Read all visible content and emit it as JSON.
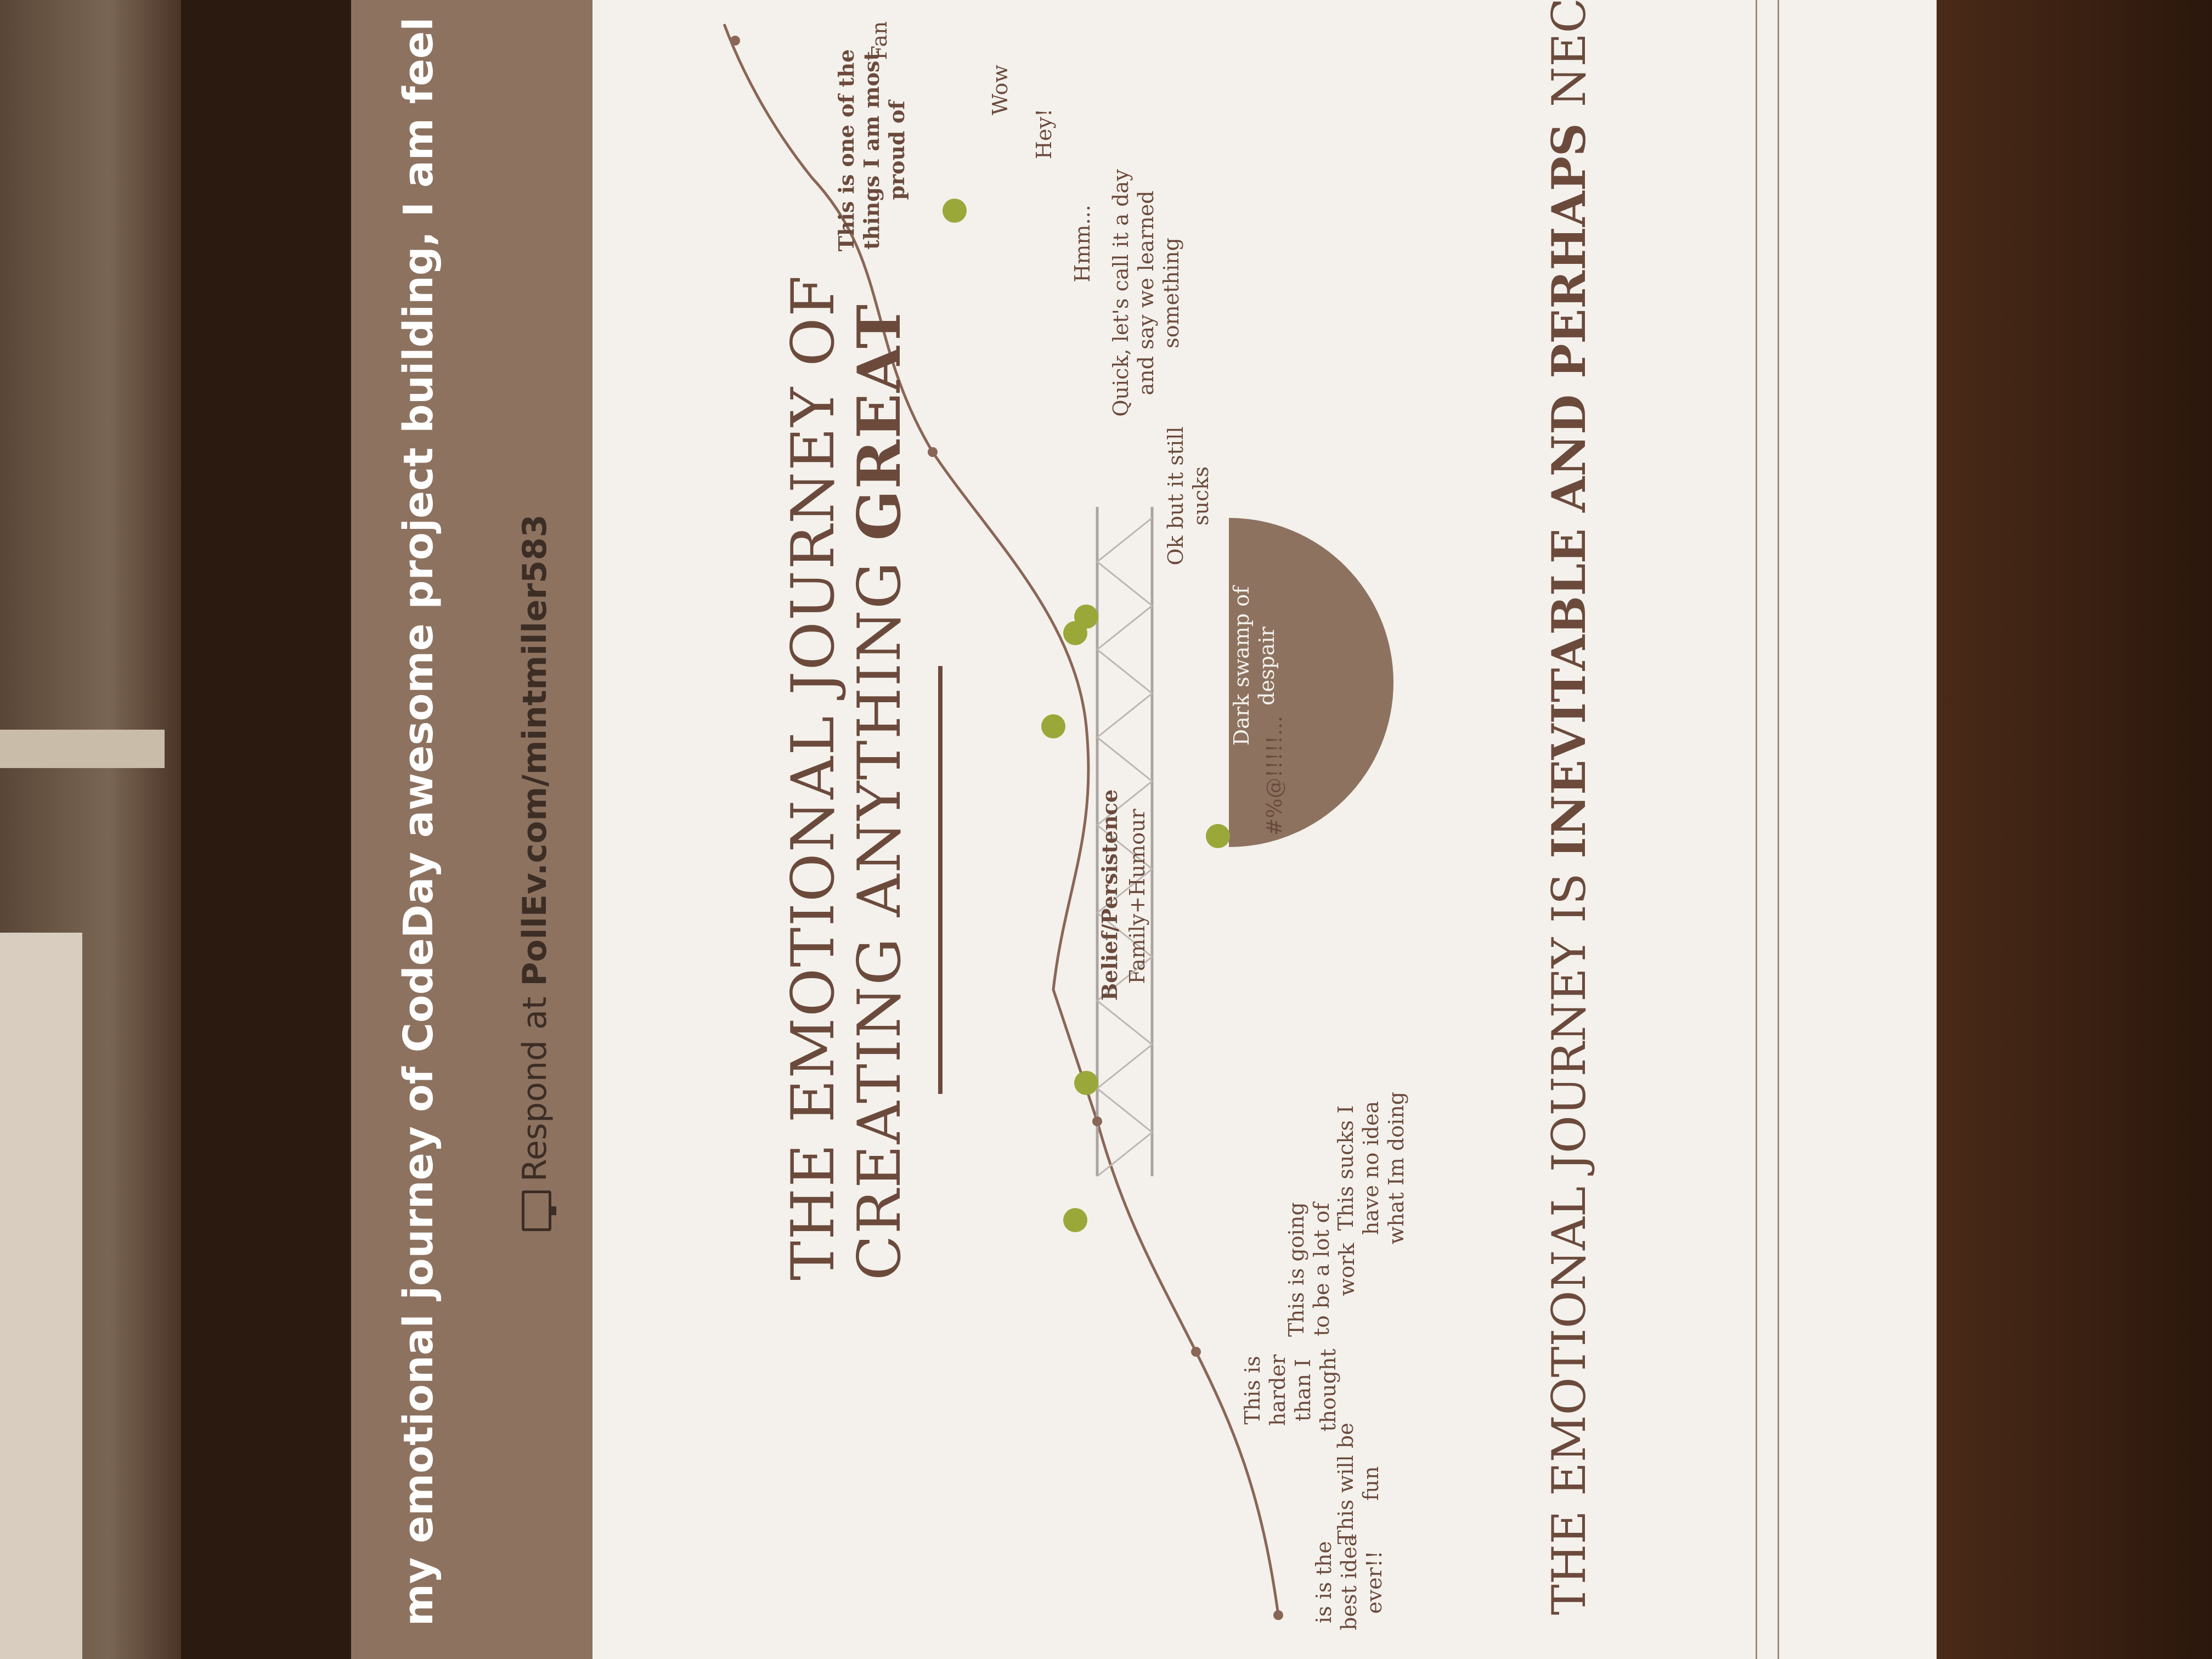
{
  "banner": {
    "text": "my emotional journey of CodeDay awesome project building, I am feel"
  },
  "respond": {
    "prefix": "Respond at ",
    "url": "PollEv.com/mintmiller583"
  },
  "slide": {
    "title_line1": "THE EMOTIONAL JOURNEY OF",
    "title_line2_a": "CREATING ANYTHING ",
    "title_line2_b": "GREAT",
    "labels": {
      "best_idea": "is is the best idea ever!!",
      "fun": "This will be fun",
      "harder": "This is harder than I thought",
      "lot_of_work": "This is going to be a lot of work",
      "no_idea": "This sucks I have no idea what Im doing",
      "belief": "Belief/Persistence",
      "family": "Family+Humour",
      "swamp": "Dark swamp of despair",
      "symbols": "#%@!!!!!...",
      "ok_sucks": "Ok but it still sucks",
      "quick": "Quick, let's call it a day and say we learned something",
      "hmm": "Hmm...",
      "hey": "Hey!",
      "wow": "Wow",
      "proud": "This is one of the things I am most proud of",
      "fam": "Fan"
    },
    "footer_a": "THE EMOTIONAL JOURNEY IS ",
    "footer_b": "INEVITABLE AND PERHAPS ",
    "footer_c": "NECESSARY"
  },
  "colors": {
    "banner": "#8d7260",
    "brown": "#6b4a3c",
    "pin": "#9aa83a"
  }
}
